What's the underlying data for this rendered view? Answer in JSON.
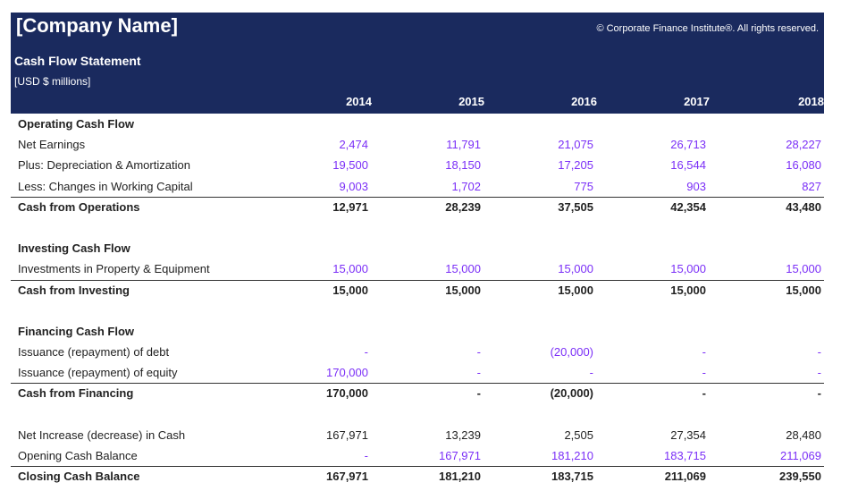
{
  "header": {
    "company": "[Company Name]",
    "copyright": "© Corporate Finance Institute®. All rights reserved.",
    "title": "Cash Flow Statement",
    "units": "[USD $ millions]",
    "years": [
      "2014",
      "2015",
      "2016",
      "2017",
      "2018"
    ]
  },
  "rows": [
    {
      "type": "section",
      "label": "Operating Cash Flow"
    },
    {
      "type": "line",
      "label": "Net Earnings",
      "input": true,
      "values": [
        "2,474",
        "11,791",
        "21,075",
        "26,713",
        "28,227"
      ]
    },
    {
      "type": "line",
      "label": "Plus: Depreciation & Amortization",
      "input": true,
      "values": [
        "19,500",
        "18,150",
        "17,205",
        "16,544",
        "16,080"
      ]
    },
    {
      "type": "line",
      "label": "Less: Changes in Working Capital",
      "input": true,
      "values": [
        "9,003",
        "1,702",
        "775",
        "903",
        "827"
      ]
    },
    {
      "type": "total",
      "label": "Cash from Operations",
      "values": [
        "12,971",
        "28,239",
        "37,505",
        "42,354",
        "43,480"
      ]
    },
    {
      "type": "blank"
    },
    {
      "type": "section",
      "label": "Investing Cash Flow"
    },
    {
      "type": "line",
      "label": "Investments in Property & Equipment",
      "input": true,
      "values": [
        "15,000",
        "15,000",
        "15,000",
        "15,000",
        "15,000"
      ]
    },
    {
      "type": "total",
      "label": "Cash from Investing",
      "values": [
        "15,000",
        "15,000",
        "15,000",
        "15,000",
        "15,000"
      ]
    },
    {
      "type": "blank"
    },
    {
      "type": "section",
      "label": "Financing Cash Flow"
    },
    {
      "type": "line",
      "label": "Issuance (repayment) of debt",
      "input": true,
      "values": [
        "-",
        "-",
        "(20,000)",
        "-",
        "-"
      ]
    },
    {
      "type": "line",
      "label": "Issuance (repayment) of equity",
      "input": true,
      "values": [
        "170,000",
        "-",
        "-",
        "-",
        "-"
      ]
    },
    {
      "type": "total",
      "label": "Cash from Financing",
      "values": [
        "170,000",
        "-",
        "(20,000)",
        "-",
        "-"
      ]
    },
    {
      "type": "blank"
    },
    {
      "type": "line",
      "label": "Net Increase (decrease) in Cash",
      "input": false,
      "values": [
        "167,971",
        "13,239",
        "2,505",
        "27,354",
        "28,480"
      ]
    },
    {
      "type": "line",
      "label": "Opening Cash Balance",
      "input": true,
      "values": [
        "-",
        "167,971",
        "181,210",
        "183,715",
        "211,069"
      ]
    },
    {
      "type": "total",
      "label": "Closing Cash Balance",
      "values": [
        "167,971",
        "181,210",
        "183,715",
        "211,069",
        "239,550"
      ]
    }
  ]
}
